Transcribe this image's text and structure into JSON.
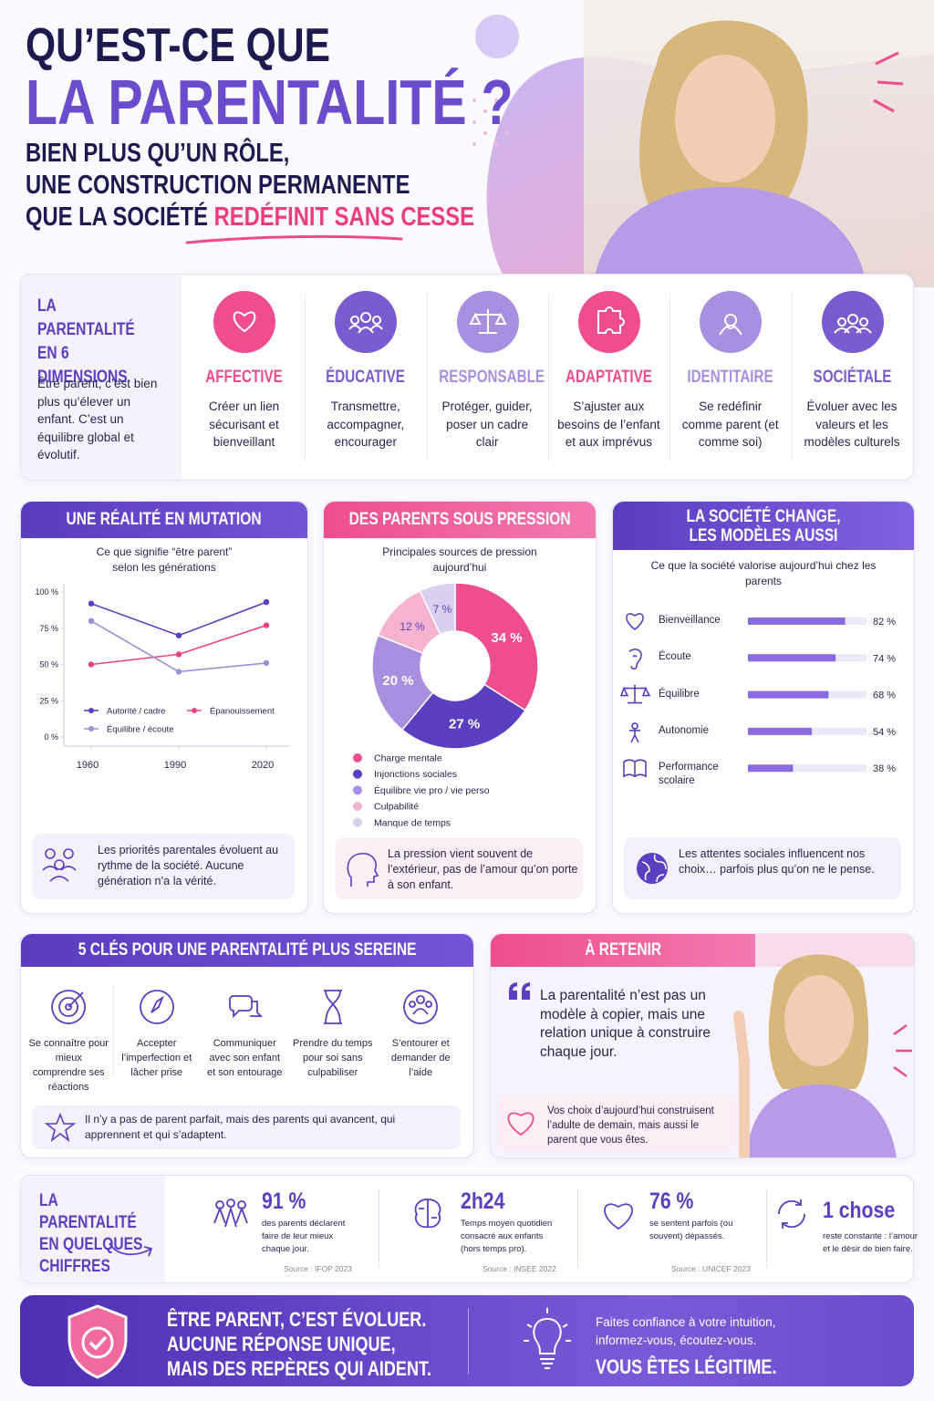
{
  "header": {
    "line1": "QU’EST-CE QUE",
    "line2": "LA PARENTALITÉ ?",
    "sub1": "BIEN PLUS QU’UN RÔLE,",
    "sub2": "UNE CONSTRUCTION PERMANENTE",
    "sub3": "QUE LA SOCIÉTÉ",
    "sub3_highlight": "REDÉFINIT SANS CESSE"
  },
  "dimensions": {
    "title": "LA PARENTALITÉ EN 6 DIMENSIONS",
    "intro": "Être parent, c’est bien plus qu’élever un enfant. C’est un équilibre global et évolutif.",
    "items": [
      {
        "label": "AFFECTIVE",
        "text": "Créer un lien sécurisant et bienveillant"
      },
      {
        "label": "ÉDUCATIVE",
        "text": "Transmettre, accompagner, encourager"
      },
      {
        "label": "RESPONSABLE",
        "text": "Protéger, guider, poser un cadre clair"
      },
      {
        "label": "ADAPTATIVE",
        "text": "S’ajuster aux besoins de l’enfant et aux imprévus"
      },
      {
        "label": "IDENTITAIRE",
        "text": "Se redéfinir comme parent (et comme soi)"
      },
      {
        "label": "SOCIÉTALE",
        "text": "Évoluer avec les valeurs et les modèles culturels"
      }
    ]
  },
  "chart_data": [
    {
      "type": "line",
      "title": "UNE RÉALITÉ EN MUTATION",
      "subtitle": "Ce que signifie “être parent” selon les générations",
      "x": [
        1960,
        1990,
        2020
      ],
      "xlim": [
        1950,
        2030
      ],
      "xticks": [
        1960,
        1990,
        2020
      ],
      "ylim": [
        0,
        100
      ],
      "yticks": [
        {
          "value": 0,
          "label": "0 %"
        },
        {
          "value": 25,
          "label": "25 %"
        },
        {
          "value": 50,
          "label": "50 %"
        },
        {
          "value": 75,
          "label": "75 %"
        },
        {
          "value": 100,
          "label": "100 %"
        }
      ],
      "grid": false,
      "series": [
        {
          "name": "Autorité / cadre",
          "color": "#5b3fc0",
          "values": [
            92,
            70,
            93
          ]
        },
        {
          "name": "Épanouissement",
          "color": "#e8457e",
          "values": [
            50,
            57,
            77
          ]
        },
        {
          "name": "Équilibre / écoute",
          "color": "#9c8fd6",
          "values": [
            80,
            45,
            51
          ]
        }
      ],
      "note": "Les priorités parentales évoluent au rythme de la société. Aucune génération n’a la vérité."
    },
    {
      "type": "pie",
      "title": "DES PARENTS SOUS PRESSION",
      "subtitle": "Principales sources de pression aujourd’hui",
      "categories": [
        "Charge mentale",
        "Injonctions sociales",
        "Équilibre vie pro / vie perso",
        "Culpabilité",
        "Manque de temps"
      ],
      "values": [
        34,
        27,
        20,
        12,
        7
      ],
      "value_labels": [
        "34 %",
        "27 %",
        "20 %",
        "12 %",
        "7 %"
      ],
      "colors": [
        "#ee4d8f",
        "#5b3fc0",
        "#a88fe0",
        "#f5b3cf",
        "#d9cfee"
      ],
      "note": "La pression vient souvent de l’extérieur, pas de l’amour qu’on porte à son enfant."
    },
    {
      "type": "bar",
      "title": "LA SOCIÉTÉ CHANGE, LES MODÈLES AUSSI",
      "subtitle": "Ce que la société valorise aujourd’hui chez les parents",
      "categories": [
        "Bienveillance",
        "Écoute",
        "Équilibre",
        "Autonomie",
        "Performance scolaire"
      ],
      "values": [
        82,
        74,
        68,
        54,
        38
      ],
      "value_labels": [
        "82 %",
        "74 %",
        "68 %",
        "54 %",
        "38 %"
      ],
      "xlim": [
        0,
        100
      ],
      "color": "#8a6be0",
      "note": "Les attentes sociales influencent nos choix… parfois plus qu’on ne le pense."
    }
  ],
  "keys": {
    "title": "5 CLÉS POUR UNE PARENTALITÉ PLUS SEREINE",
    "items": [
      "Se connaître pour mieux comprendre ses réactions",
      "Accepter l’imperfection et lâcher prise",
      "Communiquer avec son enfant et son entourage",
      "Prendre du temps pour soi sans culpabiliser",
      "S’entourer et demander de l’aide"
    ],
    "note": "Il n’y a pas de parent parfait, mais des parents qui avancent, qui apprennent et qui s’adaptent."
  },
  "retenir": {
    "title": "À RETENIR",
    "quote": "La parentalité n’est pas un modèle à copier, mais une relation unique à construire chaque jour.",
    "note": "Vos choix d’aujourd’hui construisent l’adulte de demain, mais aussi le parent que vous êtes."
  },
  "figures": {
    "title": "LA PARENTALITÉ EN QUELQUES CHIFFRES",
    "items": [
      {
        "value": "91 %",
        "text": "des parents déclarent faire de leur mieux chaque jour.",
        "source": "Source : IFOP 2023"
      },
      {
        "value": "2h24",
        "text": "Temps moyen quotidien consacré aux enfants (hors temps pro).",
        "source": "Source : INSEE 2022"
      },
      {
        "value": "76 %",
        "text": "se sentent parfois (ou souvent) dépassés.",
        "source": "Source : UNICEF 2023"
      },
      {
        "value": "1 chose",
        "text": "reste constante : l’amour et le désir de bien faire."
      }
    ]
  },
  "footer": {
    "line1": "ÊTRE PARENT, C’EST ÉVOLUER.",
    "line2": "AUCUNE RÉPONSE UNIQUE,",
    "line3": "MAIS DES REPÈRES QUI AIDENT.",
    "advice": "Faites confiance à votre intuition, informez-vous, écoutez-vous.",
    "closing": "VOUS ÊTES LÉGITIME."
  }
}
